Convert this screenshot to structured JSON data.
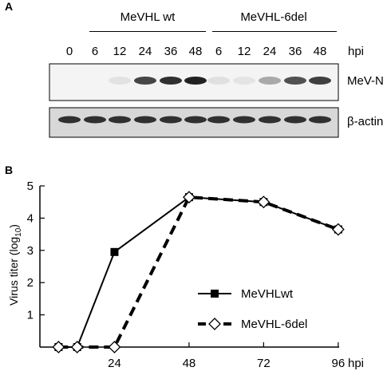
{
  "panel_a": {
    "letter": "A",
    "groups": [
      "MeVHL wt",
      "MeVHL-6del"
    ],
    "lanes": [
      "0",
      "6",
      "12",
      "24",
      "36",
      "48",
      "6",
      "12",
      "24",
      "36",
      "48"
    ],
    "unit": "hpi",
    "rows": [
      {
        "label": "MeV-N",
        "intensity": [
          0.0,
          0.0,
          0.04,
          0.75,
          0.85,
          0.92,
          0.05,
          0.03,
          0.3,
          0.7,
          0.78
        ]
      },
      {
        "label": "β-actin",
        "intensity": [
          0.85,
          0.85,
          0.85,
          0.85,
          0.85,
          0.85,
          0.85,
          0.85,
          0.85,
          0.85,
          0.85
        ]
      }
    ]
  },
  "panel_b": {
    "letter": "B",
    "ylabel_main": "Virus titer (log",
    "ylabel_sub": "10",
    "ylabel_end": ")",
    "xunit": "hpi",
    "chart_data": {
      "type": "line",
      "x_ticks": [
        24,
        48,
        72,
        96
      ],
      "y_ticks": [
        1,
        2,
        3,
        4,
        5
      ],
      "xlim": [
        0,
        104
      ],
      "ylim": [
        0,
        5
      ],
      "series": [
        {
          "name": "MeVHLwt",
          "marker": "square",
          "line": "solid",
          "x": [
            6,
            12,
            24,
            48,
            72,
            96
          ],
          "y": [
            0,
            0,
            2.95,
            4.65,
            4.5,
            3.65
          ]
        },
        {
          "name": "MeVHL-6del",
          "marker": "diamond",
          "line": "dashed",
          "x": [
            6,
            12,
            24,
            48,
            72,
            96
          ],
          "y": [
            0,
            0,
            0,
            4.65,
            4.5,
            3.65
          ]
        }
      ]
    }
  }
}
